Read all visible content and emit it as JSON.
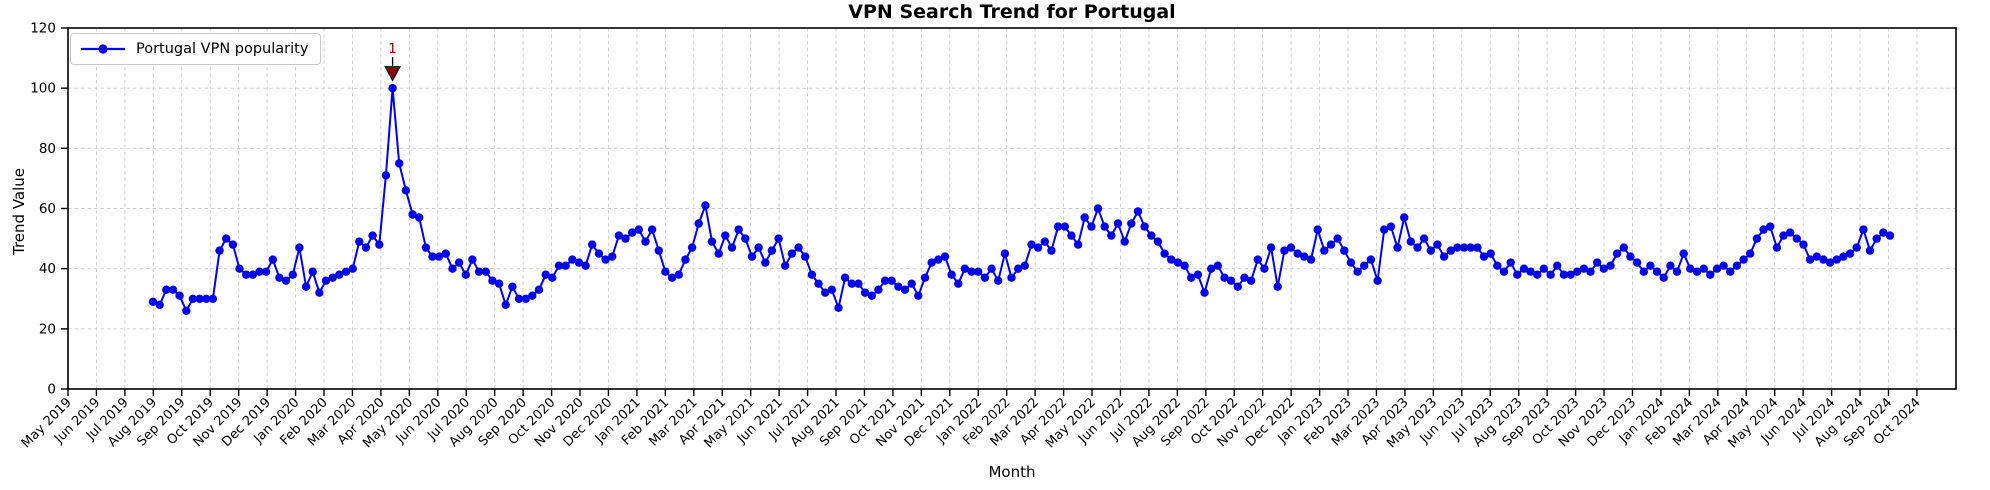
{
  "chart_data": {
    "type": "line",
    "title": "VPN Search Trend for Portugal",
    "xlabel": "Month",
    "ylabel": "Trend Value",
    "ylim": [
      0,
      120
    ],
    "yticks": [
      0,
      20,
      40,
      60,
      80,
      100,
      120
    ],
    "grid": true,
    "legend_position": "upper left",
    "x_tick_labels": [
      "May 2019",
      "Jun 2019",
      "Jul 2019",
      "Aug 2019",
      "Sep 2019",
      "Oct 2019",
      "Nov 2019",
      "Dec 2019",
      "Jan 2020",
      "Feb 2020",
      "Mar 2020",
      "Apr 2020",
      "May 2020",
      "Jun 2020",
      "Jul 2020",
      "Aug 2020",
      "Sep 2020",
      "Oct 2020",
      "Nov 2020",
      "Dec 2020",
      "Jan 2021",
      "Feb 2021",
      "Mar 2021",
      "Apr 2021",
      "May 2021",
      "Jun 2021",
      "Jul 2021",
      "Aug 2021",
      "Sep 2021",
      "Oct 2021",
      "Nov 2021",
      "Dec 2021",
      "Jan 2022",
      "Feb 2022",
      "Mar 2022",
      "Apr 2022",
      "May 2022",
      "Jun 2022",
      "Jul 2022",
      "Aug 2022",
      "Sep 2022",
      "Oct 2022",
      "Nov 2022",
      "Dec 2022",
      "Jan 2023",
      "Feb 2023",
      "Mar 2023",
      "Apr 2023",
      "May 2023",
      "Jun 2023",
      "Jul 2023",
      "Aug 2023",
      "Sep 2023",
      "Oct 2023",
      "Nov 2023",
      "Dec 2023",
      "Jan 2024",
      "Feb 2024",
      "Mar 2024",
      "Apr 2024",
      "May 2024",
      "Jun 2024",
      "Jul 2024",
      "Aug 2024",
      "Sep 2024",
      "Oct 2024"
    ],
    "series": [
      {
        "name": "Portugal VPN popularity",
        "color": "#0000ee",
        "marker": "circle",
        "values": [
          29,
          28,
          33,
          33,
          31,
          26,
          30,
          30,
          30,
          30,
          46,
          50,
          48,
          40,
          38,
          38,
          39,
          39,
          43,
          37,
          36,
          38,
          47,
          34,
          39,
          32,
          36,
          37,
          38,
          39,
          40,
          49,
          47,
          51,
          48,
          71,
          100,
          75,
          66,
          58,
          57,
          47,
          44,
          44,
          45,
          40,
          42,
          38,
          43,
          39,
          39,
          36,
          35,
          28,
          34,
          30,
          30,
          31,
          33,
          38,
          37,
          41,
          41,
          43,
          42,
          41,
          48,
          45,
          43,
          44,
          51,
          50,
          52,
          53,
          49,
          53,
          46,
          39,
          37,
          38,
          43,
          47,
          55,
          61,
          49,
          45,
          51,
          47,
          53,
          50,
          44,
          47,
          42,
          46,
          50,
          41,
          45,
          47,
          44,
          38,
          35,
          32,
          33,
          27,
          37,
          35,
          35,
          32,
          31,
          33,
          36,
          36,
          34,
          33,
          35,
          31,
          37,
          42,
          43,
          44,
          38,
          35,
          40,
          39,
          39,
          37,
          40,
          36,
          45,
          37,
          40,
          41,
          48,
          47,
          49,
          46,
          54,
          54,
          51,
          48,
          57,
          54,
          60,
          54,
          51,
          55,
          49,
          55,
          59,
          54,
          51,
          49,
          45,
          43,
          42,
          41,
          37,
          38,
          32,
          40,
          41,
          37,
          36,
          34,
          37,
          36,
          43,
          40,
          47,
          34,
          46,
          47,
          45,
          44,
          43,
          53,
          46,
          48,
          50,
          46,
          42,
          39,
          41,
          43,
          36,
          53,
          54,
          47,
          57,
          49,
          47,
          50,
          46,
          48,
          44,
          46,
          47,
          47,
          47,
          47,
          44,
          45,
          41,
          39,
          42,
          38,
          40,
          39,
          38,
          40,
          38,
          41,
          38,
          38,
          39,
          40,
          39,
          42,
          40,
          41,
          45,
          47,
          44,
          42,
          39,
          41,
          39,
          37,
          41,
          39,
          45,
          40,
          39,
          40,
          38,
          40,
          41,
          39,
          41,
          43,
          45,
          50,
          53,
          54,
          47,
          51,
          52,
          50,
          48,
          43,
          44,
          43,
          42,
          43,
          44,
          45,
          47,
          53,
          46,
          50,
          52,
          51
        ]
      }
    ],
    "annotation": {
      "label": "1",
      "color": "#8b0000",
      "point_index": 36,
      "value": 100
    }
  }
}
